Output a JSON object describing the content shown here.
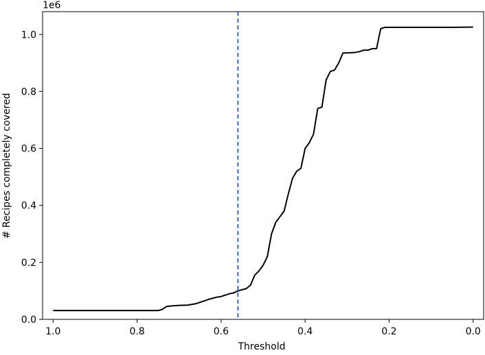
{
  "chart_data": {
    "type": "line",
    "title": "",
    "xlabel": "Threshold",
    "ylabel": "# Recipes completely covered",
    "y_offset_label": "1e6",
    "x_inverted": true,
    "xlim": [
      1.025,
      -0.025
    ],
    "ylim": [
      0,
      1.08
    ],
    "xticks": [
      1.0,
      0.8,
      0.6,
      0.4,
      0.2,
      0.0
    ],
    "xtick_labels": [
      "1.0",
      "0.8",
      "0.6",
      "0.4",
      "0.2",
      "0.0"
    ],
    "yticks": [
      0.0,
      0.2,
      0.4,
      0.6,
      0.8,
      1.0
    ],
    "ytick_labels": [
      "0.0",
      "0.2",
      "0.4",
      "0.6",
      "0.8",
      "1.0"
    ],
    "grid": false,
    "series": [
      {
        "color": "#000000",
        "x": [
          1.0,
          0.9,
          0.8,
          0.75,
          0.74,
          0.73,
          0.72,
          0.7,
          0.68,
          0.66,
          0.65,
          0.63,
          0.61,
          0.6,
          0.58,
          0.57,
          0.56,
          0.55,
          0.54,
          0.53,
          0.52,
          0.51,
          0.5,
          0.49,
          0.48,
          0.47,
          0.46,
          0.45,
          0.44,
          0.43,
          0.42,
          0.41,
          0.4,
          0.39,
          0.38,
          0.37,
          0.36,
          0.35,
          0.34,
          0.33,
          0.32,
          0.31,
          0.3,
          0.29,
          0.28,
          0.27,
          0.26,
          0.25,
          0.24,
          0.23,
          0.22,
          0.21,
          0.2,
          0.15,
          0.1,
          0.05,
          0.0
        ],
        "y": [
          0.031,
          0.031,
          0.031,
          0.031,
          0.035,
          0.045,
          0.047,
          0.049,
          0.05,
          0.055,
          0.06,
          0.07,
          0.078,
          0.08,
          0.09,
          0.093,
          0.1,
          0.104,
          0.108,
          0.12,
          0.155,
          0.17,
          0.19,
          0.22,
          0.3,
          0.34,
          0.36,
          0.38,
          0.44,
          0.495,
          0.52,
          0.53,
          0.6,
          0.62,
          0.65,
          0.74,
          0.745,
          0.84,
          0.87,
          0.875,
          0.9,
          0.935,
          0.935,
          0.936,
          0.937,
          0.94,
          0.945,
          0.945,
          0.95,
          0.95,
          1.02,
          1.025,
          1.025,
          1.025,
          1.025,
          1.025,
          1.026
        ]
      }
    ],
    "reference_lines": [
      {
        "orientation": "vertical",
        "x": 0.56,
        "color": "#1f5fd6",
        "style": "dashed"
      }
    ]
  }
}
